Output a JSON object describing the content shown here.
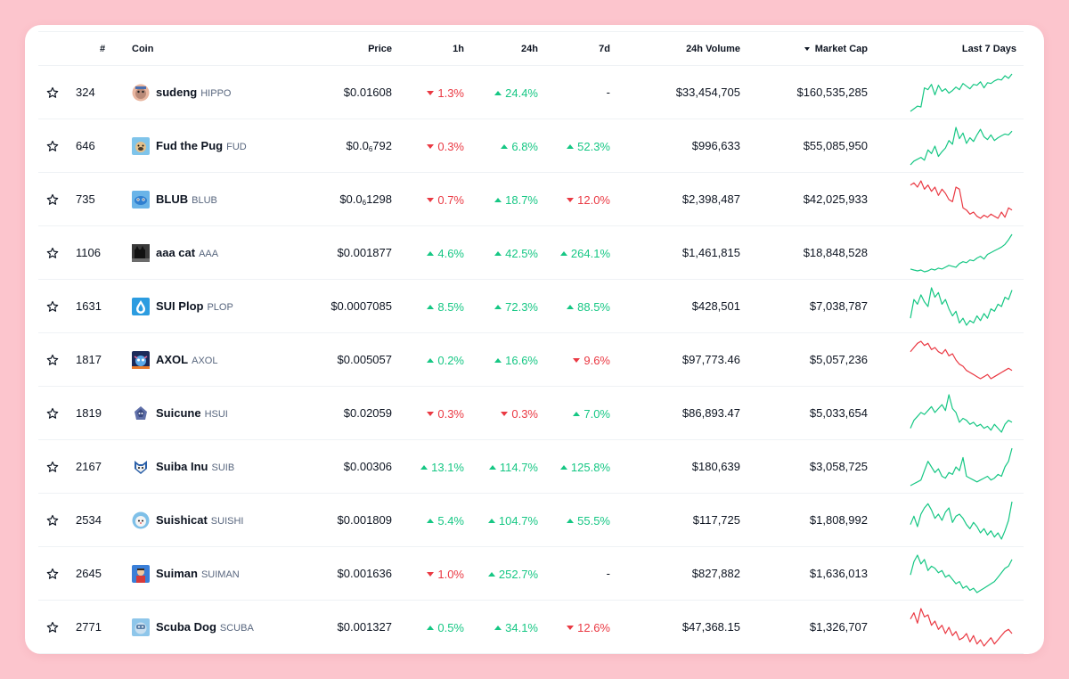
{
  "headers": {
    "rank": "#",
    "coin": "Coin",
    "price": "Price",
    "h1": "1h",
    "h24": "24h",
    "d7": "7d",
    "volume": "24h Volume",
    "mcap": "Market Cap",
    "chart": "Last 7 Days"
  },
  "colors": {
    "up": "#16c784",
    "down": "#ea3943"
  },
  "rows": [
    {
      "rank": "324",
      "name": "sudeng",
      "symbol": "HIPPO",
      "icon": "hippo-logo-icon",
      "price": "$0.01608",
      "h1": "1.3%",
      "h1_dir": "down",
      "h24": "24.4%",
      "h24_dir": "up",
      "d7": "-",
      "d7_dir": "none",
      "volume": "$33,454,705",
      "mcap": "$160,535,285",
      "trend": "up",
      "spark": [
        3,
        6,
        9,
        8,
        30,
        28,
        34,
        22,
        33,
        26,
        29,
        24,
        27,
        31,
        28,
        35,
        32,
        29,
        34,
        33,
        37,
        30,
        36,
        35,
        38,
        40,
        39,
        44,
        41,
        46
      ]
    },
    {
      "rank": "646",
      "name": "Fud the Pug",
      "symbol": "FUD",
      "icon": "pug-logo-icon",
      "price_prefix": "$0.0",
      "price_sub": "6",
      "price_rest": "792",
      "h1": "0.3%",
      "h1_dir": "down",
      "h24": "6.8%",
      "h24_dir": "up",
      "d7": "52.3%",
      "d7_dir": "up",
      "volume": "$996,633",
      "mcap": "$55,085,950",
      "trend": "up",
      "spark": [
        4,
        8,
        10,
        12,
        9,
        20,
        16,
        24,
        13,
        18,
        22,
        30,
        26,
        44,
        32,
        38,
        27,
        33,
        29,
        36,
        42,
        34,
        31,
        36,
        30,
        33,
        35,
        37,
        36,
        40
      ]
    },
    {
      "rank": "735",
      "name": "BLUB",
      "symbol": "BLUB",
      "icon": "blub-logo-icon",
      "price_prefix": "$0.0",
      "price_sub": "6",
      "price_rest": "1298",
      "h1": "0.7%",
      "h1_dir": "down",
      "h24": "18.7%",
      "h24_dir": "up",
      "d7": "12.0%",
      "d7_dir": "down",
      "volume": "$2,398,487",
      "mcap": "$42,025,933",
      "trend": "down",
      "spark": [
        40,
        42,
        38,
        44,
        36,
        40,
        34,
        38,
        30,
        36,
        32,
        26,
        24,
        38,
        36,
        18,
        16,
        12,
        14,
        10,
        8,
        11,
        9,
        12,
        10,
        8,
        14,
        9,
        18,
        16
      ]
    },
    {
      "rank": "1106",
      "name": "aaa cat",
      "symbol": "AAA",
      "icon": "cat-logo-icon",
      "price": "$0.001877",
      "h1": "4.6%",
      "h1_dir": "up",
      "h24": "42.5%",
      "h24_dir": "up",
      "d7": "264.1%",
      "d7_dir": "up",
      "volume": "$1,461,815",
      "mcap": "$18,848,528",
      "trend": "up",
      "spark": [
        6,
        5,
        4,
        5,
        3,
        4,
        6,
        5,
        7,
        6,
        8,
        10,
        9,
        8,
        12,
        14,
        13,
        16,
        15,
        18,
        20,
        17,
        22,
        24,
        26,
        28,
        30,
        33,
        38,
        44
      ]
    },
    {
      "rank": "1631",
      "name": "SUI Plop",
      "symbol": "PLOP",
      "icon": "plop-logo-icon",
      "price": "$0.0007085",
      "h1": "8.5%",
      "h1_dir": "up",
      "h24": "72.3%",
      "h24_dir": "up",
      "d7": "88.5%",
      "d7_dir": "up",
      "volume": "$428,501",
      "mcap": "$7,038,787",
      "trend": "up",
      "spark": [
        14,
        30,
        26,
        34,
        28,
        24,
        40,
        32,
        36,
        26,
        30,
        22,
        16,
        20,
        10,
        14,
        8,
        12,
        10,
        16,
        12,
        18,
        14,
        22,
        20,
        26,
        24,
        32,
        30,
        38
      ]
    },
    {
      "rank": "1817",
      "name": "AXOL",
      "symbol": "AXOL",
      "icon": "axol-logo-icon",
      "price": "$0.005057",
      "h1": "0.2%",
      "h1_dir": "up",
      "h24": "16.6%",
      "h24_dir": "up",
      "d7": "9.6%",
      "d7_dir": "down",
      "volume": "$97,773.46",
      "mcap": "$5,057,236",
      "trend": "down",
      "spark": [
        32,
        36,
        40,
        42,
        38,
        40,
        34,
        36,
        32,
        30,
        34,
        28,
        30,
        24,
        20,
        18,
        14,
        12,
        10,
        8,
        6,
        8,
        10,
        6,
        8,
        10,
        12,
        14,
        16,
        14
      ]
    },
    {
      "rank": "1819",
      "name": "Suicune",
      "symbol": "HSUI",
      "icon": "suicune-logo-icon",
      "price": "$0.02059",
      "h1": "0.3%",
      "h1_dir": "down",
      "h24": "0.3%",
      "h24_dir": "down",
      "d7": "7.0%",
      "d7_dir": "up",
      "volume": "$86,893.47",
      "mcap": "$5,033,654",
      "trend": "up",
      "spark": [
        10,
        18,
        22,
        26,
        24,
        28,
        32,
        26,
        30,
        34,
        28,
        44,
        30,
        26,
        16,
        20,
        18,
        14,
        16,
        12,
        14,
        10,
        12,
        8,
        14,
        10,
        6,
        14,
        18,
        16
      ]
    },
    {
      "rank": "2167",
      "name": "Suiba Inu",
      "symbol": "SUIB",
      "icon": "shiba-logo-icon",
      "price": "$0.00306",
      "h1": "13.1%",
      "h1_dir": "up",
      "h24": "114.7%",
      "h24_dir": "up",
      "d7": "125.8%",
      "d7_dir": "up",
      "volume": "$180,639",
      "mcap": "$3,058,725",
      "trend": "up",
      "spark": [
        4,
        6,
        8,
        10,
        20,
        30,
        24,
        18,
        22,
        14,
        12,
        18,
        16,
        24,
        20,
        34,
        14,
        12,
        10,
        8,
        10,
        12,
        14,
        10,
        12,
        16,
        14,
        24,
        30,
        44
      ]
    },
    {
      "rank": "2534",
      "name": "Suishicat",
      "symbol": "SUISHI",
      "icon": "suishicat-logo-icon",
      "price": "$0.001809",
      "h1": "5.4%",
      "h1_dir": "up",
      "h24": "104.7%",
      "h24_dir": "up",
      "d7": "55.5%",
      "d7_dir": "up",
      "volume": "$117,725",
      "mcap": "$1,808,992",
      "trend": "up",
      "spark": [
        20,
        28,
        18,
        30,
        36,
        40,
        34,
        26,
        30,
        24,
        32,
        36,
        22,
        28,
        30,
        26,
        20,
        16,
        22,
        18,
        12,
        16,
        10,
        14,
        8,
        12,
        6,
        14,
        24,
        42
      ]
    },
    {
      "rank": "2645",
      "name": "Suiman",
      "symbol": "SUIMAN",
      "icon": "suiman-logo-icon",
      "price": "$0.001636",
      "h1": "1.0%",
      "h1_dir": "down",
      "h24": "252.7%",
      "h24_dir": "up",
      "d7": "-",
      "d7_dir": "none",
      "volume": "$827,882",
      "mcap": "$1,636,013",
      "trend": "up",
      "spark": [
        22,
        34,
        40,
        32,
        36,
        26,
        30,
        28,
        24,
        26,
        20,
        22,
        18,
        14,
        16,
        10,
        12,
        8,
        10,
        6,
        8,
        10,
        12,
        14,
        16,
        20,
        24,
        28,
        30,
        36
      ]
    },
    {
      "rank": "2771",
      "name": "Scuba Dog",
      "symbol": "SCUBA",
      "icon": "scuba-logo-icon",
      "price": "$0.001327",
      "h1": "0.5%",
      "h1_dir": "up",
      "h24": "34.1%",
      "h24_dir": "up",
      "d7": "12.6%",
      "d7_dir": "down",
      "volume": "$47,368.15",
      "mcap": "$1,326,707",
      "trend": "down",
      "spark": [
        30,
        36,
        26,
        40,
        32,
        34,
        24,
        28,
        20,
        24,
        16,
        22,
        14,
        18,
        10,
        12,
        16,
        8,
        14,
        6,
        10,
        4,
        8,
        12,
        6,
        10,
        14,
        18,
        20,
        16
      ]
    }
  ]
}
